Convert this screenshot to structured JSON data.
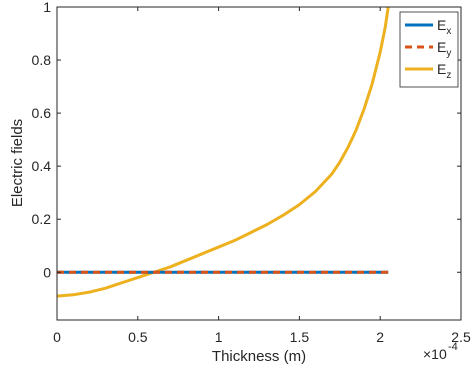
{
  "chart_data": {
    "type": "line",
    "xlabel": "Thickness (m)",
    "ylabel": "Electric fields",
    "x_exponent_label": "×10",
    "x_exponent_power": "-4",
    "xlim": [
      0,
      2.5
    ],
    "ylim": [
      -0.18,
      1.0
    ],
    "xticks": [
      0,
      0.5,
      1,
      1.5,
      2,
      2.5
    ],
    "xtick_labels": [
      "0",
      "0.5",
      "1",
      "1.5",
      "2",
      "2.5"
    ],
    "yticks": [
      0,
      0.2,
      0.4,
      0.6,
      0.8,
      1
    ],
    "ytick_labels": [
      "0",
      "0.2",
      "0.4",
      "0.6",
      "0.8",
      "1"
    ],
    "grid": false,
    "legend_position": "top-right",
    "series": [
      {
        "name": "E",
        "subscript": "x",
        "color": "#0072BD",
        "dash": "solid",
        "x": [
          0,
          2.05
        ],
        "y": [
          0,
          0
        ]
      },
      {
        "name": "E",
        "subscript": "y",
        "color": "#D95319",
        "dash": "dashed",
        "x": [
          0,
          2.05
        ],
        "y": [
          0,
          0
        ]
      },
      {
        "name": "E",
        "subscript": "z",
        "color": "#EDB120",
        "dash": "solid",
        "x": [
          0,
          0.1,
          0.2,
          0.3,
          0.4,
          0.5,
          0.6,
          0.7,
          0.8,
          0.9,
          1.0,
          1.1,
          1.2,
          1.3,
          1.4,
          1.5,
          1.6,
          1.7,
          1.75,
          1.8,
          1.85,
          1.9,
          1.95,
          2.0,
          2.03,
          2.05
        ],
        "y": [
          -0.09,
          -0.085,
          -0.075,
          -0.06,
          -0.04,
          -0.02,
          0.0,
          0.02,
          0.045,
          0.07,
          0.095,
          0.12,
          0.15,
          0.18,
          0.215,
          0.255,
          0.305,
          0.37,
          0.415,
          0.47,
          0.535,
          0.615,
          0.71,
          0.83,
          0.92,
          1.0
        ]
      }
    ]
  }
}
